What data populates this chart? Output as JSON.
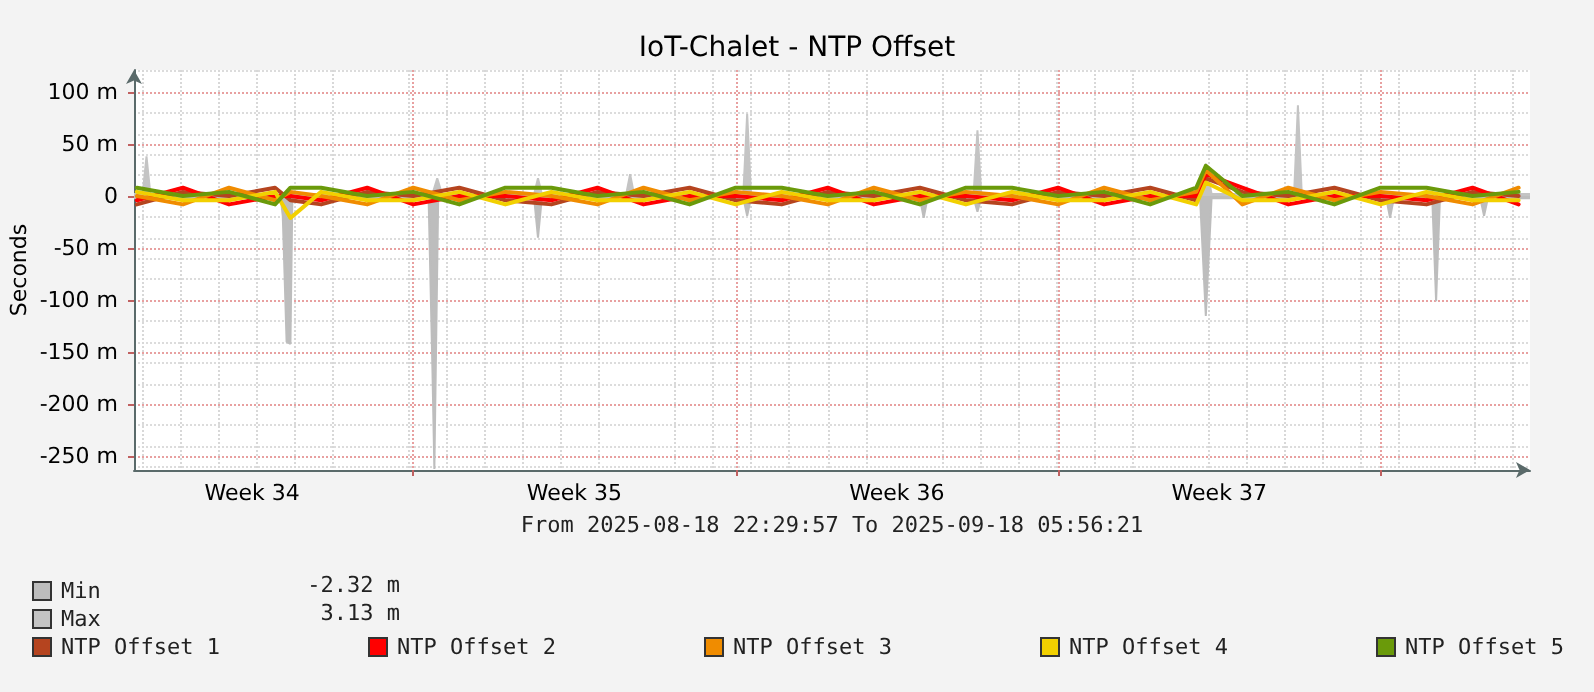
{
  "chart_data": {
    "type": "line",
    "title": "IoT-Chalet - NTP Offset",
    "xlabel": "From 2025-08-18 22:29:57 To 2025-09-18 05:56:21",
    "ylabel": "Seconds",
    "annotations": [
      "-2.32 m",
      "3.13 m"
    ],
    "x": [
      "2025-08-19",
      "2025-08-20",
      "2025-08-21",
      "2025-08-22",
      "2025-08-22T08:00",
      "2025-08-23",
      "2025-08-24",
      "2025-08-25",
      "2025-08-26",
      "2025-08-27",
      "2025-08-28",
      "2025-08-29",
      "2025-08-30",
      "2025-08-31",
      "2025-09-01",
      "2025-09-02",
      "2025-09-03",
      "2025-09-04",
      "2025-09-05",
      "2025-09-06",
      "2025-09-07",
      "2025-09-08",
      "2025-09-09",
      "2025-09-10",
      "2025-09-11",
      "2025-09-11T05:00",
      "2025-09-12",
      "2025-09-13",
      "2025-09-14",
      "2025-09-15",
      "2025-09-16",
      "2025-09-17",
      "2025-09-18"
    ],
    "series": [
      {
        "name": "Min",
        "type": "area",
        "color": "#bdbdbd",
        "x": [
          "2025-08-18T22:30",
          "2025-08-22T03:00",
          "2025-08-22T04:00",
          "2025-08-22T06:00",
          "2025-08-22T08:00",
          "2025-08-22T09:00",
          "2025-08-25T08:00",
          "2025-08-25T10:00",
          "2025-08-25T11:00",
          "2025-08-25T13:00",
          "2025-08-27T15:00",
          "2025-08-27T17:00",
          "2025-08-27T19:00",
          "2025-09-01T04:00",
          "2025-09-01T06:00",
          "2025-09-01T08:00",
          "2025-09-05T00:00",
          "2025-09-05T02:00",
          "2025-09-05T04:00",
          "2025-09-06T04:00",
          "2025-09-06T06:00",
          "2025-09-06T08:00",
          "2025-09-11T02:00",
          "2025-09-11T05:00",
          "2025-09-11T08:00",
          "2025-09-15T03:00",
          "2025-09-15T05:00",
          "2025-09-15T07:00",
          "2025-09-16T03:00",
          "2025-09-16T05:00",
          "2025-09-16T07:00",
          "2025-09-17T04:00",
          "2025-09-17T06:00",
          "2025-09-17T08:00",
          "2025-09-18T05:56"
        ],
        "values": [
          -2,
          -2,
          -19,
          -140,
          -142,
          -2,
          -2,
          -167,
          -262,
          -2,
          -2,
          -40,
          -2,
          -2,
          -19,
          -2,
          -2,
          -21,
          -2,
          -2,
          -15,
          -2,
          -2,
          -115,
          -2,
          -2,
          -21,
          -2,
          -2,
          -101,
          -2,
          -2,
          -19,
          -2,
          -2
        ]
      },
      {
        "name": "Max",
        "type": "area",
        "color": "#c4c4c4",
        "x": [
          "2025-08-18T22:30",
          "2025-08-19T03:00",
          "2025-08-19T05:00",
          "2025-08-19T07:00",
          "2025-08-25T10:00",
          "2025-08-25T12:30",
          "2025-08-25T15:00",
          "2025-08-27T15:00",
          "2025-08-27T17:00",
          "2025-08-27T19:00",
          "2025-08-29T15:00",
          "2025-08-29T17:00",
          "2025-08-29T19:00",
          "2025-09-01T04:00",
          "2025-09-01T06:00",
          "2025-09-01T08:00",
          "2025-09-06T04:00",
          "2025-09-06T06:00",
          "2025-09-06T08:00",
          "2025-09-11T02:00",
          "2025-09-11T05:00",
          "2025-09-11T08:00",
          "2025-09-13T03:00",
          "2025-09-13T05:00",
          "2025-09-13T07:00",
          "2025-09-18T05:56"
        ],
        "values": [
          2,
          2,
          38,
          2,
          2,
          17,
          2,
          2,
          17,
          2,
          2,
          21,
          2,
          2,
          79,
          2,
          2,
          63,
          2,
          2,
          31,
          2,
          2,
          87,
          2,
          2
        ]
      },
      {
        "name": "NTP Offset 1",
        "color": "#b5441f",
        "values": [
          -8,
          4,
          0,
          8,
          -4,
          -8,
          4,
          0,
          8,
          -4,
          -8,
          4,
          0,
          8,
          -4,
          -8,
          4,
          0,
          8,
          -4,
          -8,
          4,
          0,
          8,
          -4,
          17,
          4,
          0,
          8,
          -4,
          -8,
          4,
          0
        ]
      },
      {
        "name": "NTP Offset 2",
        "color": "#ff0000",
        "values": [
          -4,
          8,
          -8,
          0,
          0,
          -4,
          8,
          -8,
          0,
          0,
          -4,
          8,
          -8,
          0,
          0,
          -4,
          8,
          -8,
          0,
          0,
          -4,
          8,
          -8,
          0,
          0,
          21,
          8,
          -8,
          0,
          0,
          -4,
          8,
          -8
        ]
      },
      {
        "name": "NTP Offset 3",
        "color": "#f08c00",
        "values": [
          0,
          -8,
          8,
          -4,
          4,
          0,
          -8,
          8,
          -4,
          4,
          0,
          -8,
          8,
          -4,
          4,
          0,
          -8,
          8,
          -4,
          4,
          0,
          -8,
          8,
          -4,
          4,
          25,
          -8,
          8,
          -4,
          4,
          0,
          -8,
          8
        ]
      },
      {
        "name": "NTP Offset 4",
        "color": "#f2d000",
        "values": [
          4,
          -4,
          -4,
          4,
          -21,
          4,
          -4,
          -4,
          4,
          -8,
          4,
          -4,
          -4,
          4,
          -8,
          4,
          -4,
          -4,
          4,
          -8,
          4,
          -4,
          -4,
          4,
          -8,
          13,
          -4,
          -4,
          4,
          -8,
          4,
          -4,
          -4
        ]
      },
      {
        "name": "NTP Offset 5",
        "color": "#6a9a0a",
        "values": [
          8,
          0,
          4,
          -8,
          8,
          8,
          0,
          4,
          -8,
          8,
          8,
          0,
          4,
          -8,
          8,
          8,
          0,
          4,
          -8,
          8,
          8,
          0,
          4,
          -8,
          8,
          29,
          0,
          4,
          -8,
          8,
          8,
          0,
          4
        ]
      }
    ],
    "xlim": [
      "2025-08-18T22:29",
      "2025-09-18T05:56"
    ],
    "xticks": [
      {
        "value": "2025-08-21T12:00",
        "label": "Week 34"
      },
      {
        "value": "2025-08-25",
        "label": null
      },
      {
        "value": "2025-08-28T12:00",
        "label": "Week 35"
      },
      {
        "value": "2025-09-01",
        "label": null
      },
      {
        "value": "2025-09-04T12:00",
        "label": "Week 36"
      },
      {
        "value": "2025-09-08",
        "label": null
      },
      {
        "value": "2025-09-11T12:00",
        "label": "Week 37"
      },
      {
        "value": "2025-09-15",
        "label": null
      }
    ],
    "ylim": [
      -263,
      121
    ],
    "yticks": [
      {
        "value": -250,
        "label": "-250 m"
      },
      {
        "value": -200,
        "label": "-200 m"
      },
      {
        "value": -150,
        "label": "-150 m"
      },
      {
        "value": -100,
        "label": "-100 m"
      },
      {
        "value": -50,
        "label": "-50 m"
      },
      0,
      {
        "value": 50,
        "label": "50 m"
      },
      {
        "value": 100,
        "label": "100 m"
      }
    ],
    "grid": true,
    "legend": "bottom",
    "marker": "none",
    "line_style": "solid"
  }
}
